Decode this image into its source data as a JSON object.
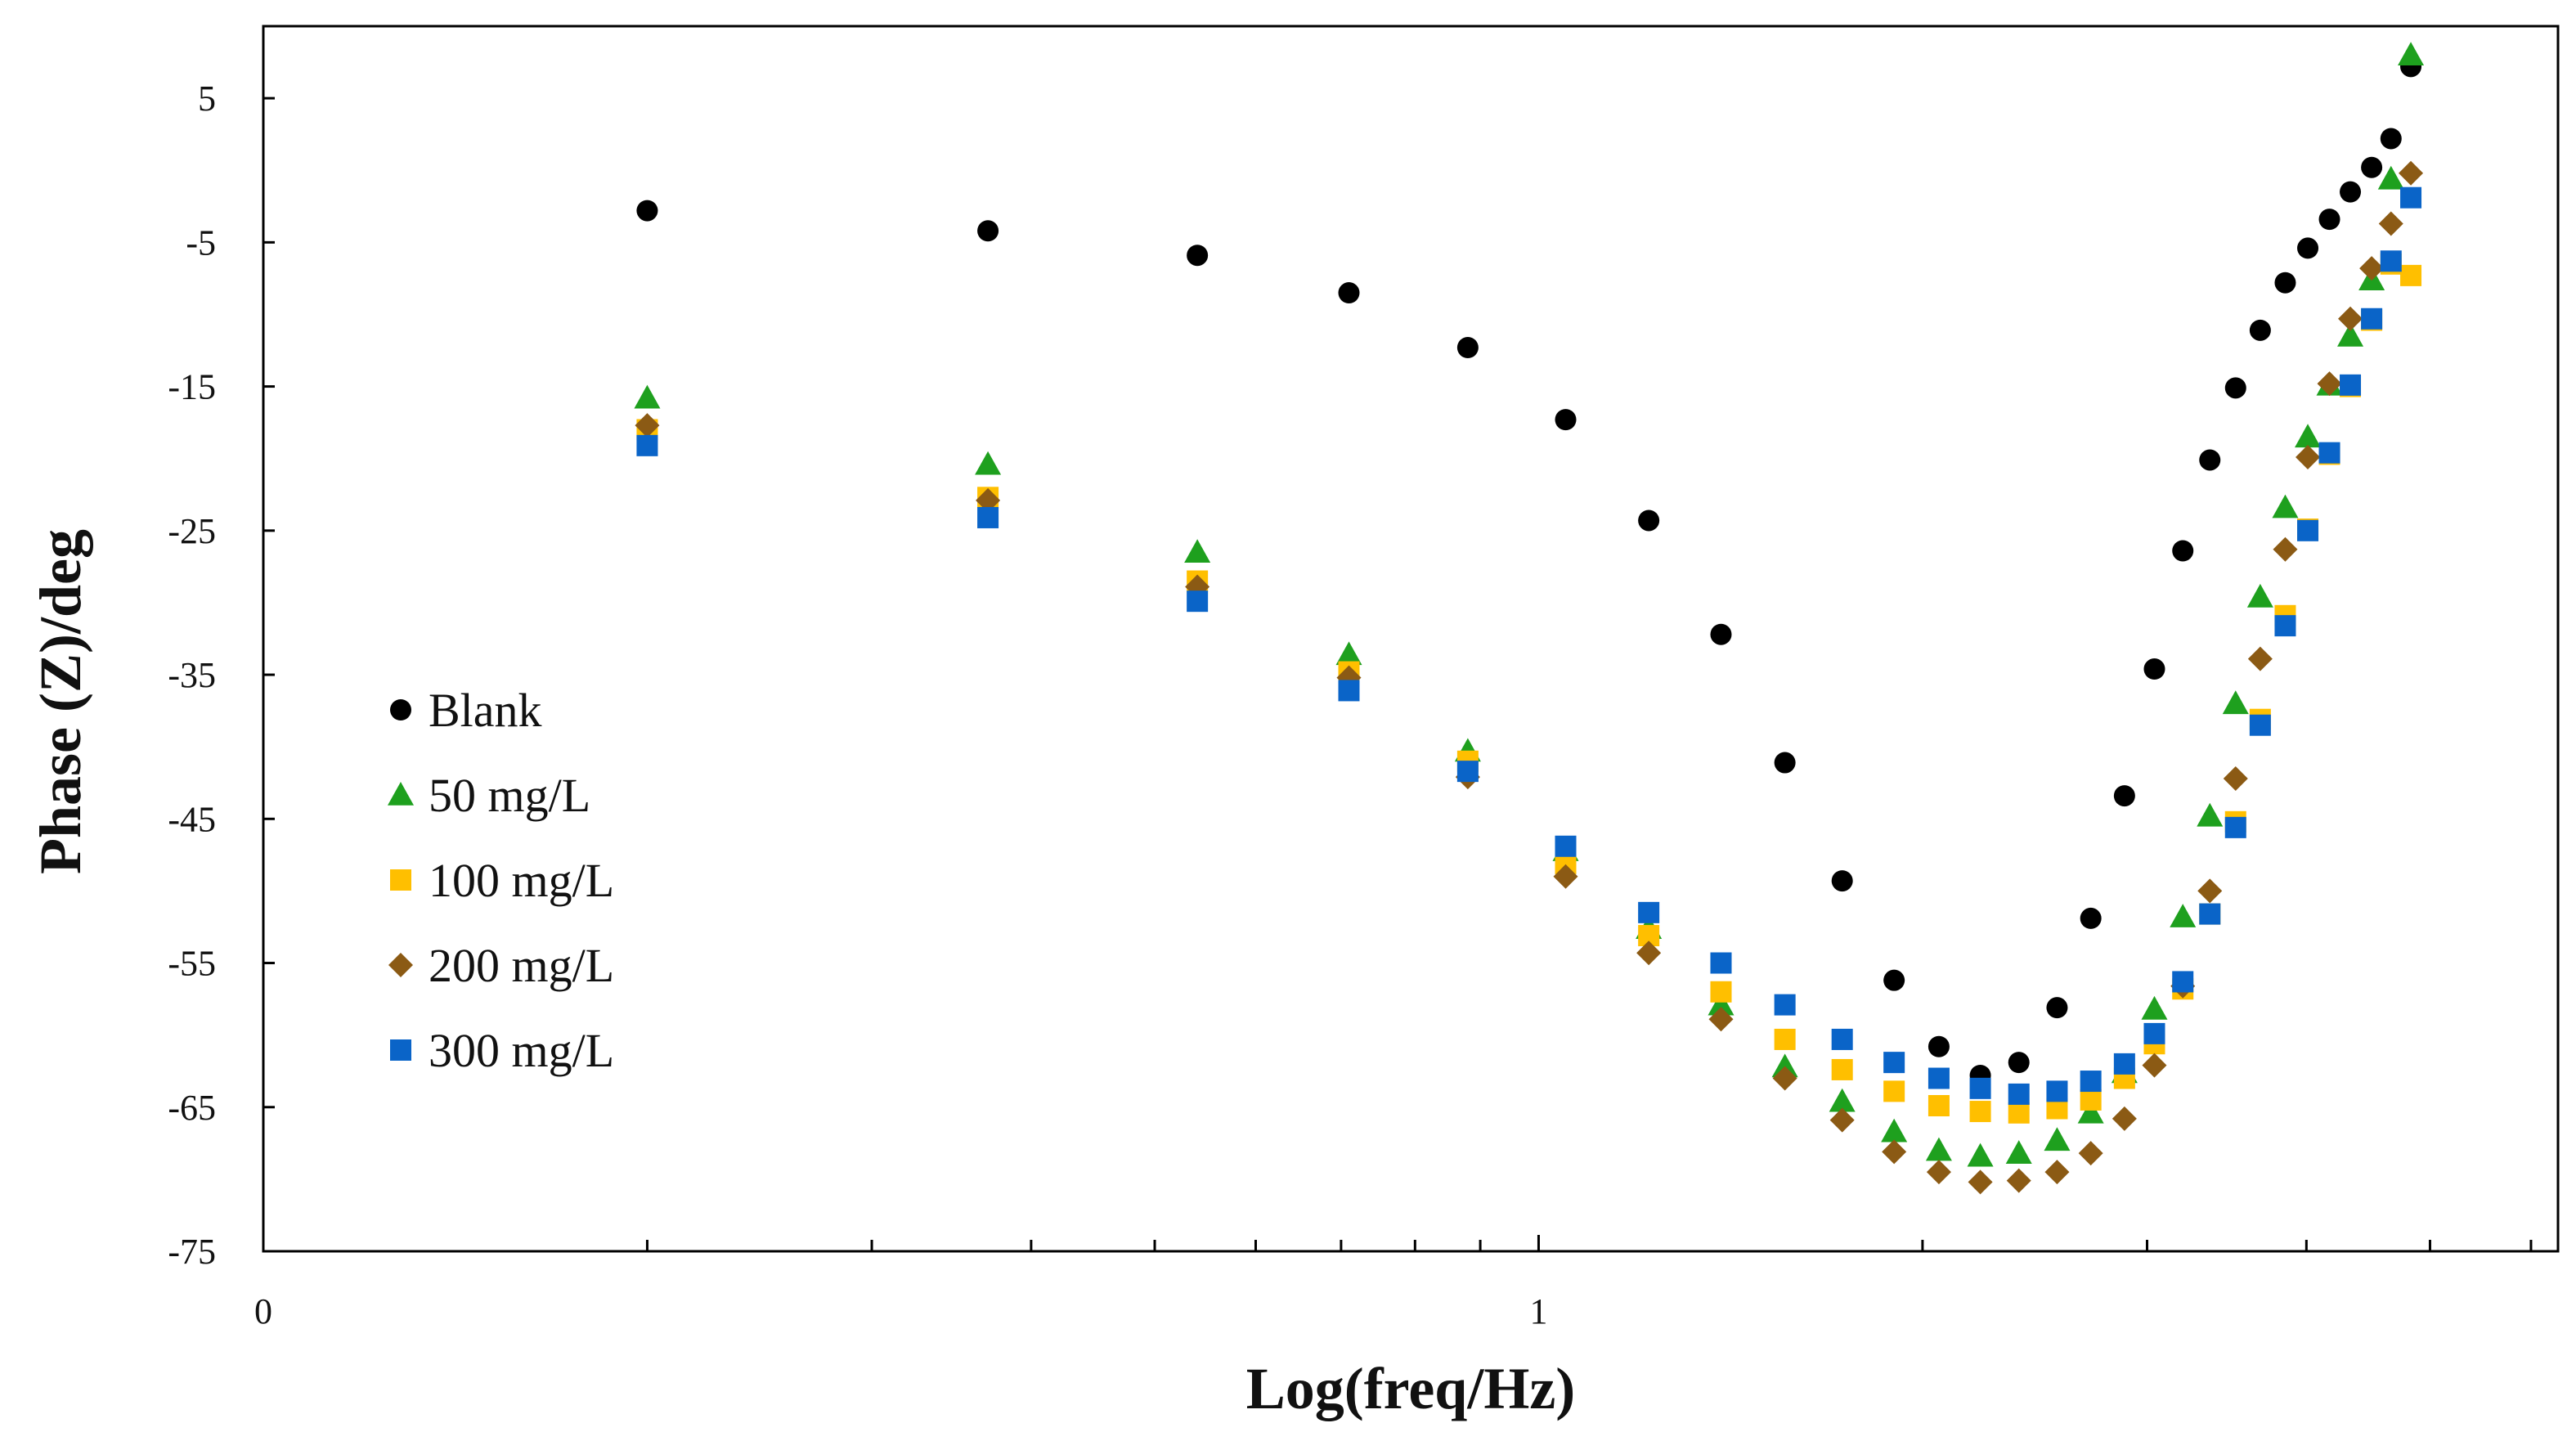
{
  "chart_data": {
    "type": "scatter",
    "title": "",
    "xlabel": "Log(freq/Hz)",
    "ylabel": "Phase (Z)/deg",
    "x_scale": "log",
    "xlim": [
      0.1,
      6.3
    ],
    "ylim": [
      -75,
      10
    ],
    "yticks": [
      -75,
      -65,
      -55,
      -45,
      -35,
      -25,
      -15,
      -5,
      5
    ],
    "xtick_labels": [
      {
        "value": 0.1,
        "label": "0"
      },
      {
        "value": 1,
        "label": "1"
      }
    ],
    "x_minor_ticks": [
      0.2,
      0.3,
      0.4,
      0.5,
      0.6,
      0.7,
      0.8,
      0.9,
      2,
      3,
      4,
      5,
      6
    ],
    "grid": false,
    "legend_position": "left",
    "series": [
      {
        "name": "Blank",
        "marker": "circle",
        "color": "#000000",
        "points": [
          [
            0.2,
            -2.8
          ],
          [
            0.37,
            -4.2
          ],
          [
            0.54,
            -5.9
          ],
          [
            0.71,
            -8.5
          ],
          [
            0.88,
            -12.3
          ],
          [
            1.05,
            -17.3
          ],
          [
            1.22,
            -24.3
          ],
          [
            1.39,
            -32.2
          ],
          [
            1.56,
            -41.1
          ],
          [
            1.73,
            -49.3
          ],
          [
            1.9,
            -56.2
          ],
          [
            2.06,
            -60.8
          ],
          [
            2.22,
            -62.8
          ],
          [
            2.38,
            -61.9
          ],
          [
            2.55,
            -58.1
          ],
          [
            2.71,
            -51.9
          ],
          [
            2.88,
            -43.4
          ],
          [
            3.04,
            -34.6
          ],
          [
            3.2,
            -26.4
          ],
          [
            3.36,
            -20.1
          ],
          [
            3.52,
            -15.1
          ],
          [
            3.68,
            -11.1
          ],
          [
            3.85,
            -7.8
          ],
          [
            4.01,
            -5.4
          ],
          [
            4.17,
            -3.4
          ],
          [
            4.33,
            -1.5
          ],
          [
            4.5,
            0.2
          ],
          [
            4.66,
            2.2
          ],
          [
            4.83,
            7.2
          ]
        ]
      },
      {
        "name": "50 mg/L",
        "marker": "triangle",
        "color": "#1ea01e",
        "points": [
          [
            0.2,
            -15.8
          ],
          [
            0.37,
            -20.4
          ],
          [
            0.54,
            -26.5
          ],
          [
            0.71,
            -33.6
          ],
          [
            0.88,
            -40.3
          ],
          [
            1.05,
            -47.2
          ],
          [
            1.22,
            -52.6
          ],
          [
            1.39,
            -57.9
          ],
          [
            1.56,
            -62.2
          ],
          [
            1.73,
            -64.6
          ],
          [
            1.9,
            -66.7
          ],
          [
            2.06,
            -68.0
          ],
          [
            2.22,
            -68.4
          ],
          [
            2.38,
            -68.2
          ],
          [
            2.55,
            -67.3
          ],
          [
            2.71,
            -65.4
          ],
          [
            2.88,
            -62.6
          ],
          [
            3.04,
            -58.2
          ],
          [
            3.2,
            -51.8
          ],
          [
            3.36,
            -44.8
          ],
          [
            3.52,
            -37.0
          ],
          [
            3.68,
            -29.6
          ],
          [
            3.85,
            -23.4
          ],
          [
            4.01,
            -18.5
          ],
          [
            4.17,
            -14.9
          ],
          [
            4.33,
            -11.5
          ],
          [
            4.5,
            -7.6
          ],
          [
            4.66,
            -0.6
          ],
          [
            4.83,
            8.0
          ]
        ]
      },
      {
        "name": "100 mg/L",
        "marker": "square",
        "color": "#ffbf00",
        "points": [
          [
            0.2,
            -18.0
          ],
          [
            0.37,
            -22.7
          ],
          [
            0.54,
            -28.5
          ],
          [
            0.71,
            -34.8
          ],
          [
            0.88,
            -41.0
          ],
          [
            1.05,
            -48.1
          ],
          [
            1.22,
            -53.1
          ],
          [
            1.39,
            -57.0
          ],
          [
            1.56,
            -60.3
          ],
          [
            1.73,
            -62.4
          ],
          [
            1.9,
            -63.9
          ],
          [
            2.06,
            -64.9
          ],
          [
            2.22,
            -65.3
          ],
          [
            2.38,
            -65.4
          ],
          [
            2.55,
            -65.1
          ],
          [
            2.71,
            -64.5
          ],
          [
            2.88,
            -63.0
          ],
          [
            3.04,
            -60.6
          ],
          [
            3.2,
            -56.8
          ],
          [
            3.36,
            -51.6
          ],
          [
            3.52,
            -45.2
          ],
          [
            3.68,
            -38.1
          ],
          [
            3.85,
            -30.9
          ],
          [
            4.01,
            -24.9
          ],
          [
            4.17,
            -19.7
          ],
          [
            4.33,
            -15.0
          ],
          [
            4.5,
            -10.4
          ],
          [
            4.66,
            -6.5
          ],
          [
            4.83,
            -7.3
          ]
        ]
      },
      {
        "name": "200 mg/L",
        "marker": "diamond",
        "color": "#8b5a14",
        "points": [
          [
            0.2,
            -17.7
          ],
          [
            0.37,
            -22.9
          ],
          [
            0.54,
            -28.9
          ],
          [
            0.71,
            -35.2
          ],
          [
            0.88,
            -42.1
          ],
          [
            1.05,
            -49.0
          ],
          [
            1.22,
            -54.3
          ],
          [
            1.39,
            -58.9
          ],
          [
            1.56,
            -63.0
          ],
          [
            1.73,
            -65.9
          ],
          [
            1.9,
            -68.1
          ],
          [
            2.06,
            -69.5
          ],
          [
            2.22,
            -70.2
          ],
          [
            2.38,
            -70.1
          ],
          [
            2.55,
            -69.5
          ],
          [
            2.71,
            -68.2
          ],
          [
            2.88,
            -65.8
          ],
          [
            3.04,
            -62.1
          ],
          [
            3.2,
            -56.6
          ],
          [
            3.36,
            -50.0
          ],
          [
            3.52,
            -42.2
          ],
          [
            3.68,
            -33.9
          ],
          [
            3.85,
            -26.3
          ],
          [
            4.01,
            -19.9
          ],
          [
            4.17,
            -14.8
          ],
          [
            4.33,
            -10.3
          ],
          [
            4.5,
            -6.8
          ],
          [
            4.66,
            -3.7
          ],
          [
            4.83,
            -0.2
          ]
        ]
      },
      {
        "name": "300 mg/L",
        "marker": "square",
        "color": "#0a64c8",
        "points": [
          [
            0.2,
            -19.1
          ],
          [
            0.37,
            -24.1
          ],
          [
            0.54,
            -29.9
          ],
          [
            0.71,
            -36.1
          ],
          [
            0.88,
            -41.7
          ],
          [
            1.05,
            -46.9
          ],
          [
            1.22,
            -51.5
          ],
          [
            1.39,
            -55.0
          ],
          [
            1.56,
            -57.9
          ],
          [
            1.73,
            -60.3
          ],
          [
            1.9,
            -61.9
          ],
          [
            2.06,
            -63.0
          ],
          [
            2.22,
            -63.7
          ],
          [
            2.38,
            -64.1
          ],
          [
            2.55,
            -63.9
          ],
          [
            2.71,
            -63.2
          ],
          [
            2.88,
            -62.0
          ],
          [
            3.04,
            -59.9
          ],
          [
            3.2,
            -56.3
          ],
          [
            3.36,
            -51.6
          ],
          [
            3.52,
            -45.6
          ],
          [
            3.68,
            -38.5
          ],
          [
            3.85,
            -31.6
          ],
          [
            4.01,
            -25.0
          ],
          [
            4.17,
            -19.6
          ],
          [
            4.33,
            -14.9
          ],
          [
            4.5,
            -10.3
          ],
          [
            4.66,
            -6.3
          ],
          [
            4.83,
            -1.9
          ]
        ]
      }
    ]
  }
}
